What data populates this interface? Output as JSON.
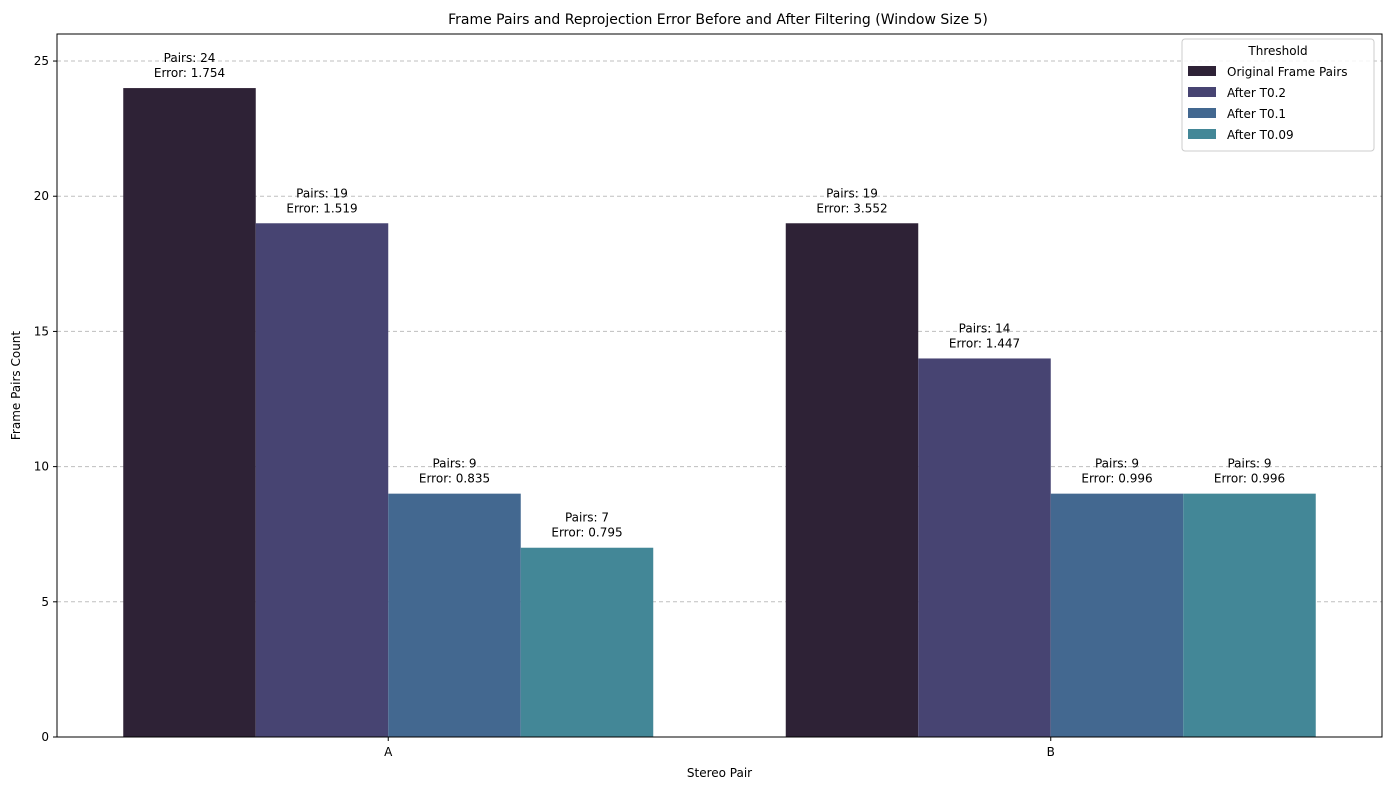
{
  "chart_data": {
    "type": "bar",
    "title": "Frame Pairs and Reprojection Error Before and After Filtering (Window Size 5)",
    "xlabel": "Stereo Pair",
    "ylabel": "Frame Pairs Count",
    "categories": [
      "A",
      "B"
    ],
    "ylim": [
      0,
      26
    ],
    "yticks": [
      0,
      5,
      10,
      15,
      20,
      25
    ],
    "grid": "y-dashed",
    "legend": {
      "title": "Threshold",
      "placement": "top-right"
    },
    "series": [
      {
        "name": "Original Frame Pairs",
        "color": "#2e2236",
        "values": [
          24,
          19
        ],
        "labels": [
          [
            "Pairs: 24",
            "Error: 1.754"
          ],
          [
            "Pairs: 19",
            "Error: 3.552"
          ]
        ]
      },
      {
        "name": "After T0.2",
        "color": "#474472",
        "values": [
          19,
          14
        ],
        "labels": [
          [
            "Pairs: 19",
            "Error: 1.519"
          ],
          [
            "Pairs: 14",
            "Error: 1.447"
          ]
        ]
      },
      {
        "name": "After T0.1",
        "color": "#436890",
        "values": [
          9,
          9
        ],
        "labels": [
          [
            "Pairs: 9",
            "Error: 0.835"
          ],
          [
            "Pairs: 9",
            "Error: 0.996"
          ]
        ]
      },
      {
        "name": "After T0.09",
        "color": "#438797",
        "values": [
          7,
          9
        ],
        "labels": [
          [
            "Pairs: 7",
            "Error: 0.795"
          ],
          [
            "Pairs: 9",
            "Error: 0.996"
          ]
        ]
      }
    ]
  }
}
